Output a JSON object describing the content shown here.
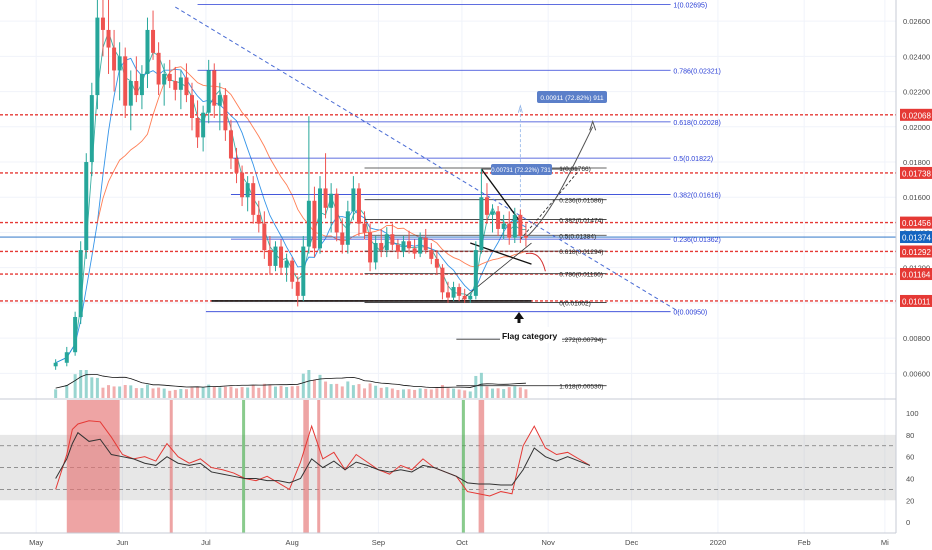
{
  "chart_data": {
    "type": "candlestick",
    "xlim": [
      "2019-04-18",
      "2020-03-05"
    ],
    "ylim": [
      0.0046,
      0.0272
    ],
    "x_tick_labels": [
      "May",
      "Jun",
      "Jul",
      "Aug",
      "Sep",
      "Oct",
      "Nov",
      "Dec",
      "2020",
      "Feb",
      "Mi"
    ],
    "x_tick_dates": [
      "2019-05-01",
      "2019-06-01",
      "2019-07-01",
      "2019-08-01",
      "2019-09-01",
      "2019-10-01",
      "2019-11-01",
      "2019-12-01",
      "2020-01-01",
      "2020-02-01",
      "2020-03-01"
    ],
    "y_tick_labels": [
      "0.00600",
      "0.00800",
      "0.01000",
      "0.01200",
      "0.01400",
      "0.01600",
      "0.01800",
      "0.02000",
      "0.02200",
      "0.02400",
      "0.02600"
    ],
    "y_tick_values": [
      0.006,
      0.008,
      0.01,
      0.012,
      0.014,
      0.016,
      0.018,
      0.02,
      0.022,
      0.024,
      0.026
    ],
    "fib_levels_left": [
      {
        "label": "1(0.02695)",
        "value": 0.02695
      },
      {
        "label": "0.786(0.02321)",
        "value": 0.02321
      },
      {
        "label": "0.618(0.02028)",
        "value": 0.02028
      },
      {
        "label": "0.5(0.01822)",
        "value": 0.01822
      },
      {
        "label": "0.382(0.01616)",
        "value": 0.01616
      },
      {
        "label": "0.236(0.01362)",
        "value": 0.01362
      },
      {
        "label": "0(0.00950)",
        "value": 0.0095
      }
    ],
    "fib_levels_right": [
      {
        "label": "1(0.01766)",
        "value": 0.01766
      },
      {
        "label": "0.236(0.01586)",
        "value": 0.01586
      },
      {
        "label": "0.382(0.01474)",
        "value": 0.01474
      },
      {
        "label": "0.5(0.01384)",
        "value": 0.01384
      },
      {
        "label": "0.618(0.01294)",
        "value": 0.01294
      },
      {
        "label": "0.786(0.01166)",
        "value": 0.01166
      },
      {
        "label": "0(0.01002)",
        "value": 0.01002
      },
      {
        "label": "1.272(0.00794)",
        "value": 0.00794
      },
      {
        "label": "1.618(0.00530)",
        "value": 0.0053
      }
    ],
    "horizontal_levels": [
      {
        "label": "0.02068",
        "value": 0.02068
      },
      {
        "label": "0.01738",
        "value": 0.01738
      },
      {
        "label": "0.01456",
        "value": 0.01456
      },
      {
        "label": "0.01374",
        "value": 0.01374
      },
      {
        "label": "0.01292",
        "value": 0.01292
      },
      {
        "label": "0.01164",
        "value": 0.01164
      },
      {
        "label": "0.01011",
        "value": 0.01011
      }
    ],
    "current_price": 0.01374,
    "annotations": {
      "measure_top": "0.00911 (72.82%) 911",
      "measure_mid": "0.00731 (72.22%) 731",
      "pattern_label": "Flag category"
    },
    "candles": [
      {
        "d": "2019-05-08",
        "o": 0.0064,
        "h": 0.0068,
        "l": 0.0062,
        "c": 0.0066
      },
      {
        "d": "2019-05-12",
        "o": 0.0066,
        "h": 0.0075,
        "l": 0.0064,
        "c": 0.0072
      },
      {
        "d": "2019-05-15",
        "o": 0.0072,
        "h": 0.0095,
        "l": 0.007,
        "c": 0.0092
      },
      {
        "d": "2019-05-17",
        "o": 0.0092,
        "h": 0.0135,
        "l": 0.0088,
        "c": 0.013
      },
      {
        "d": "2019-05-19",
        "o": 0.013,
        "h": 0.0185,
        "l": 0.0125,
        "c": 0.018
      },
      {
        "d": "2019-05-21",
        "o": 0.018,
        "h": 0.0225,
        "l": 0.0172,
        "c": 0.0218
      },
      {
        "d": "2019-05-23",
        "o": 0.0218,
        "h": 0.0272,
        "l": 0.021,
        "c": 0.0262
      },
      {
        "d": "2019-05-25",
        "o": 0.0262,
        "h": 0.0272,
        "l": 0.024,
        "c": 0.0255
      },
      {
        "d": "2019-05-27",
        "o": 0.0255,
        "h": 0.0272,
        "l": 0.023,
        "c": 0.0245
      },
      {
        "d": "2019-05-29",
        "o": 0.0245,
        "h": 0.0255,
        "l": 0.022,
        "c": 0.0232
      },
      {
        "d": "2019-05-31",
        "o": 0.0232,
        "h": 0.0248,
        "l": 0.0215,
        "c": 0.024
      },
      {
        "d": "2019-06-02",
        "o": 0.024,
        "h": 0.0245,
        "l": 0.0205,
        "c": 0.0212
      },
      {
        "d": "2019-06-04",
        "o": 0.0212,
        "h": 0.0232,
        "l": 0.0198,
        "c": 0.0226
      },
      {
        "d": "2019-06-06",
        "o": 0.0226,
        "h": 0.024,
        "l": 0.0214,
        "c": 0.0218
      },
      {
        "d": "2019-06-08",
        "o": 0.0218,
        "h": 0.0235,
        "l": 0.021,
        "c": 0.023
      },
      {
        "d": "2019-06-10",
        "o": 0.023,
        "h": 0.0262,
        "l": 0.0222,
        "c": 0.0255
      },
      {
        "d": "2019-06-12",
        "o": 0.0255,
        "h": 0.0266,
        "l": 0.0238,
        "c": 0.0242
      },
      {
        "d": "2019-06-14",
        "o": 0.0242,
        "h": 0.0248,
        "l": 0.0218,
        "c": 0.0224
      },
      {
        "d": "2019-06-16",
        "o": 0.0224,
        "h": 0.0236,
        "l": 0.0212,
        "c": 0.023
      },
      {
        "d": "2019-06-18",
        "o": 0.023,
        "h": 0.0238,
        "l": 0.0222,
        "c": 0.0226
      },
      {
        "d": "2019-06-20",
        "o": 0.0226,
        "h": 0.0234,
        "l": 0.0215,
        "c": 0.0221
      },
      {
        "d": "2019-06-22",
        "o": 0.0221,
        "h": 0.0232,
        "l": 0.021,
        "c": 0.0228
      },
      {
        "d": "2019-06-24",
        "o": 0.0228,
        "h": 0.0236,
        "l": 0.0214,
        "c": 0.0218
      },
      {
        "d": "2019-06-26",
        "o": 0.0218,
        "h": 0.0225,
        "l": 0.0198,
        "c": 0.0205
      },
      {
        "d": "2019-06-28",
        "o": 0.0205,
        "h": 0.0215,
        "l": 0.0188,
        "c": 0.0194
      },
      {
        "d": "2019-06-30",
        "o": 0.0194,
        "h": 0.0212,
        "l": 0.0186,
        "c": 0.0208
      },
      {
        "d": "2019-07-02",
        "o": 0.0208,
        "h": 0.0238,
        "l": 0.0202,
        "c": 0.0232
      },
      {
        "d": "2019-07-04",
        "o": 0.0232,
        "h": 0.0236,
        "l": 0.0205,
        "c": 0.0212
      },
      {
        "d": "2019-07-06",
        "o": 0.0212,
        "h": 0.0225,
        "l": 0.0198,
        "c": 0.0218
      },
      {
        "d": "2019-07-08",
        "o": 0.0218,
        "h": 0.0222,
        "l": 0.0192,
        "c": 0.0198
      },
      {
        "d": "2019-07-10",
        "o": 0.0198,
        "h": 0.0204,
        "l": 0.0176,
        "c": 0.0182
      },
      {
        "d": "2019-07-12",
        "o": 0.0182,
        "h": 0.0188,
        "l": 0.0168,
        "c": 0.0174
      },
      {
        "d": "2019-07-14",
        "o": 0.0174,
        "h": 0.0178,
        "l": 0.0155,
        "c": 0.016
      },
      {
        "d": "2019-07-16",
        "o": 0.016,
        "h": 0.0172,
        "l": 0.0152,
        "c": 0.0168
      },
      {
        "d": "2019-07-18",
        "o": 0.0168,
        "h": 0.0172,
        "l": 0.0145,
        "c": 0.015
      },
      {
        "d": "2019-07-20",
        "o": 0.015,
        "h": 0.0158,
        "l": 0.014,
        "c": 0.0145
      },
      {
        "d": "2019-07-22",
        "o": 0.0145,
        "h": 0.0152,
        "l": 0.0125,
        "c": 0.013
      },
      {
        "d": "2019-07-24",
        "o": 0.013,
        "h": 0.0138,
        "l": 0.0116,
        "c": 0.0121
      },
      {
        "d": "2019-07-26",
        "o": 0.0121,
        "h": 0.0135,
        "l": 0.0118,
        "c": 0.0132
      },
      {
        "d": "2019-07-28",
        "o": 0.0132,
        "h": 0.0136,
        "l": 0.0116,
        "c": 0.012
      },
      {
        "d": "2019-07-30",
        "o": 0.012,
        "h": 0.0128,
        "l": 0.0112,
        "c": 0.0124
      },
      {
        "d": "2019-08-01",
        "o": 0.0124,
        "h": 0.0126,
        "l": 0.0108,
        "c": 0.0112
      },
      {
        "d": "2019-08-03",
        "o": 0.0112,
        "h": 0.0115,
        "l": 0.0098,
        "c": 0.0104
      },
      {
        "d": "2019-08-05",
        "o": 0.0104,
        "h": 0.0138,
        "l": 0.0101,
        "c": 0.0132
      },
      {
        "d": "2019-08-07",
        "o": 0.0132,
        "h": 0.0206,
        "l": 0.0128,
        "c": 0.0158
      },
      {
        "d": "2019-08-09",
        "o": 0.0158,
        "h": 0.0166,
        "l": 0.0126,
        "c": 0.0131
      },
      {
        "d": "2019-08-11",
        "o": 0.0131,
        "h": 0.0172,
        "l": 0.0128,
        "c": 0.0165
      },
      {
        "d": "2019-08-13",
        "o": 0.0165,
        "h": 0.0185,
        "l": 0.0148,
        "c": 0.0154
      },
      {
        "d": "2019-08-15",
        "o": 0.0154,
        "h": 0.0168,
        "l": 0.014,
        "c": 0.0162
      },
      {
        "d": "2019-08-17",
        "o": 0.0162,
        "h": 0.0165,
        "l": 0.0135,
        "c": 0.014
      },
      {
        "d": "2019-08-19",
        "o": 0.014,
        "h": 0.0148,
        "l": 0.0128,
        "c": 0.0133
      },
      {
        "d": "2019-08-21",
        "o": 0.0133,
        "h": 0.0158,
        "l": 0.0128,
        "c": 0.0152
      },
      {
        "d": "2019-08-23",
        "o": 0.0152,
        "h": 0.0172,
        "l": 0.0147,
        "c": 0.0165
      },
      {
        "d": "2019-08-25",
        "o": 0.0165,
        "h": 0.0168,
        "l": 0.0138,
        "c": 0.0145
      },
      {
        "d": "2019-08-27",
        "o": 0.0145,
        "h": 0.0152,
        "l": 0.0136,
        "c": 0.014
      },
      {
        "d": "2019-08-29",
        "o": 0.014,
        "h": 0.0145,
        "l": 0.0118,
        "c": 0.0123
      },
      {
        "d": "2019-08-31",
        "o": 0.0123,
        "h": 0.0138,
        "l": 0.0119,
        "c": 0.0134
      },
      {
        "d": "2019-09-02",
        "o": 0.0134,
        "h": 0.0142,
        "l": 0.0126,
        "c": 0.013
      },
      {
        "d": "2019-09-04",
        "o": 0.013,
        "h": 0.0143,
        "l": 0.0126,
        "c": 0.0139
      },
      {
        "d": "2019-09-06",
        "o": 0.0139,
        "h": 0.0145,
        "l": 0.013,
        "c": 0.0133
      },
      {
        "d": "2019-09-08",
        "o": 0.0133,
        "h": 0.0136,
        "l": 0.0125,
        "c": 0.0129
      },
      {
        "d": "2019-09-10",
        "o": 0.0129,
        "h": 0.0138,
        "l": 0.0126,
        "c": 0.0135
      },
      {
        "d": "2019-09-12",
        "o": 0.0135,
        "h": 0.0141,
        "l": 0.0128,
        "c": 0.0131
      },
      {
        "d": "2019-09-14",
        "o": 0.0131,
        "h": 0.0136,
        "l": 0.0125,
        "c": 0.0128
      },
      {
        "d": "2019-09-16",
        "o": 0.0128,
        "h": 0.014,
        "l": 0.0126,
        "c": 0.0137
      },
      {
        "d": "2019-09-18",
        "o": 0.0137,
        "h": 0.0142,
        "l": 0.0128,
        "c": 0.013
      },
      {
        "d": "2019-09-20",
        "o": 0.013,
        "h": 0.0134,
        "l": 0.0122,
        "c": 0.0125
      },
      {
        "d": "2019-09-22",
        "o": 0.0125,
        "h": 0.013,
        "l": 0.0116,
        "c": 0.012
      },
      {
        "d": "2019-09-24",
        "o": 0.012,
        "h": 0.0122,
        "l": 0.0102,
        "c": 0.0106
      },
      {
        "d": "2019-09-26",
        "o": 0.0106,
        "h": 0.0112,
        "l": 0.01,
        "c": 0.0103
      },
      {
        "d": "2019-09-28",
        "o": 0.0103,
        "h": 0.0112,
        "l": 0.0101,
        "c": 0.0109
      },
      {
        "d": "2019-09-30",
        "o": 0.0109,
        "h": 0.0111,
        "l": 0.0101,
        "c": 0.0104
      },
      {
        "d": "2019-10-02",
        "o": 0.0104,
        "h": 0.0108,
        "l": 0.01,
        "c": 0.0102
      },
      {
        "d": "2019-10-04",
        "o": 0.0102,
        "h": 0.0106,
        "l": 0.01,
        "c": 0.0104
      },
      {
        "d": "2019-10-06",
        "o": 0.0104,
        "h": 0.0135,
        "l": 0.0102,
        "c": 0.013
      },
      {
        "d": "2019-10-08",
        "o": 0.013,
        "h": 0.0176,
        "l": 0.0128,
        "c": 0.016
      },
      {
        "d": "2019-10-10",
        "o": 0.016,
        "h": 0.0168,
        "l": 0.0145,
        "c": 0.015
      },
      {
        "d": "2019-10-12",
        "o": 0.015,
        "h": 0.0156,
        "l": 0.014,
        "c": 0.0152
      },
      {
        "d": "2019-10-14",
        "o": 0.0152,
        "h": 0.0155,
        "l": 0.0138,
        "c": 0.0142
      },
      {
        "d": "2019-10-16",
        "o": 0.0142,
        "h": 0.015,
        "l": 0.0136,
        "c": 0.0145
      },
      {
        "d": "2019-10-18",
        "o": 0.0145,
        "h": 0.0152,
        "l": 0.0133,
        "c": 0.0137
      },
      {
        "d": "2019-10-20",
        "o": 0.0137,
        "h": 0.0154,
        "l": 0.0134,
        "c": 0.015
      },
      {
        "d": "2019-10-22",
        "o": 0.015,
        "h": 0.0153,
        "l": 0.0134,
        "c": 0.0138
      },
      {
        "d": "2019-10-24",
        "o": 0.0138,
        "h": 0.0145,
        "l": 0.0132,
        "c": 0.0137
      }
    ],
    "osc_ylim": [
      -10,
      112
    ],
    "osc_y_tick_labels": [
      "100",
      "80",
      "60",
      "40",
      "20",
      "0"
    ],
    "osc_y_tick_values": [
      100,
      80,
      60,
      40,
      20,
      0
    ],
    "osc_bands": [
      70,
      50,
      30
    ],
    "osc_red": [
      [
        0,
        30
      ],
      [
        2,
        62
      ],
      [
        3,
        85
      ],
      [
        4,
        90
      ],
      [
        6,
        93
      ],
      [
        8,
        92
      ],
      [
        10,
        78
      ],
      [
        12,
        62
      ],
      [
        14,
        58
      ],
      [
        16,
        60
      ],
      [
        18,
        56
      ],
      [
        20,
        72
      ],
      [
        22,
        60
      ],
      [
        24,
        54
      ],
      [
        26,
        58
      ],
      [
        28,
        50
      ],
      [
        30,
        48
      ],
      [
        32,
        45
      ],
      [
        34,
        40
      ],
      [
        36,
        38
      ],
      [
        38,
        42
      ],
      [
        40,
        36
      ],
      [
        42,
        30
      ],
      [
        44,
        55
      ],
      [
        46,
        88
      ],
      [
        48,
        58
      ],
      [
        50,
        64
      ],
      [
        52,
        48
      ],
      [
        54,
        62
      ],
      [
        56,
        55
      ],
      [
        58,
        48
      ],
      [
        60,
        44
      ],
      [
        62,
        52
      ],
      [
        64,
        48
      ],
      [
        66,
        58
      ],
      [
        68,
        50
      ],
      [
        70,
        46
      ],
      [
        72,
        42
      ],
      [
        74,
        28
      ],
      [
        76,
        26
      ],
      [
        78,
        24
      ],
      [
        80,
        28
      ],
      [
        82,
        26
      ],
      [
        84,
        70
      ],
      [
        86,
        88
      ],
      [
        88,
        68
      ],
      [
        90,
        62
      ],
      [
        92,
        64
      ],
      [
        94,
        58
      ],
      [
        96,
        52
      ]
    ],
    "osc_black": [
      [
        0,
        40
      ],
      [
        2,
        58
      ],
      [
        3,
        72
      ],
      [
        4,
        82
      ],
      [
        6,
        74
      ],
      [
        8,
        76
      ],
      [
        10,
        62
      ],
      [
        12,
        60
      ],
      [
        14,
        58
      ],
      [
        16,
        54
      ],
      [
        18,
        52
      ],
      [
        20,
        60
      ],
      [
        22,
        54
      ],
      [
        24,
        52
      ],
      [
        26,
        54
      ],
      [
        28,
        46
      ],
      [
        30,
        44
      ],
      [
        32,
        42
      ],
      [
        34,
        40
      ],
      [
        36,
        40
      ],
      [
        38,
        38
      ],
      [
        40,
        38
      ],
      [
        42,
        36
      ],
      [
        44,
        40
      ],
      [
        46,
        58
      ],
      [
        48,
        50
      ],
      [
        50,
        56
      ],
      [
        52,
        48
      ],
      [
        54,
        55
      ],
      [
        56,
        52
      ],
      [
        58,
        48
      ],
      [
        60,
        46
      ],
      [
        62,
        48
      ],
      [
        64,
        46
      ],
      [
        66,
        52
      ],
      [
        68,
        50
      ],
      [
        70,
        46
      ],
      [
        72,
        42
      ],
      [
        74,
        36
      ],
      [
        76,
        35
      ],
      [
        78,
        35
      ],
      [
        80,
        34
      ],
      [
        82,
        34
      ],
      [
        84,
        48
      ],
      [
        86,
        68
      ],
      [
        88,
        60
      ],
      [
        90,
        56
      ],
      [
        92,
        60
      ],
      [
        94,
        56
      ],
      [
        96,
        52
      ]
    ],
    "osc_highlights": [
      {
        "from": "2019-05-12",
        "to": "2019-05-31",
        "color": "#e57373"
      },
      {
        "from": "2019-06-18",
        "to": "2019-06-19",
        "color": "#e57373"
      },
      {
        "from": "2019-07-14",
        "to": "2019-07-15",
        "color": "#4caf50"
      },
      {
        "from": "2019-08-05",
        "to": "2019-08-07",
        "color": "#e57373"
      },
      {
        "from": "2019-08-10",
        "to": "2019-08-11",
        "color": "#e57373"
      },
      {
        "from": "2019-10-01",
        "to": "2019-10-02",
        "color": "#4caf50"
      },
      {
        "from": "2019-10-07",
        "to": "2019-10-09",
        "color": "#e57373"
      }
    ]
  },
  "colors": {
    "bull": "#26a69a",
    "bear": "#ef5350",
    "fib": "#2a3fd6",
    "red_level": "#e53935",
    "current": "#1565c0",
    "ma_red": "#ff7043",
    "ma_blue": "#1e88e5",
    "ma_teal": "#26a69a"
  }
}
